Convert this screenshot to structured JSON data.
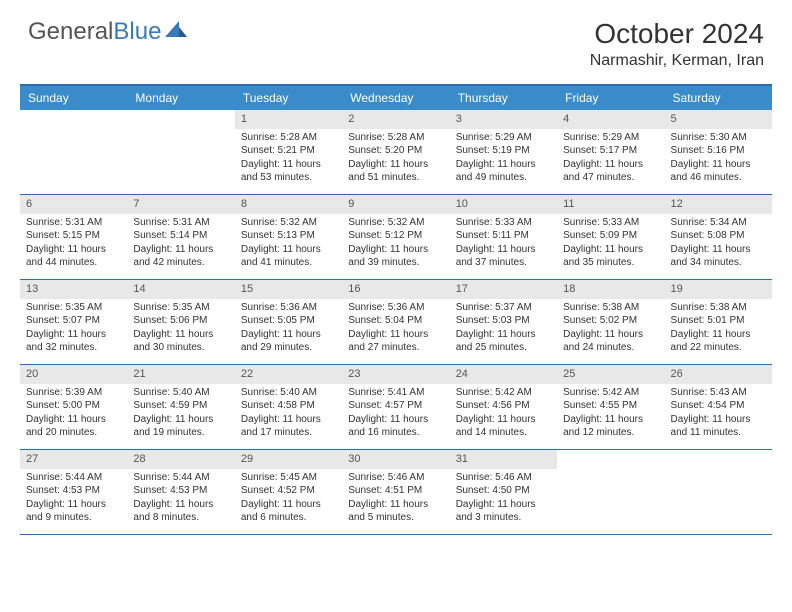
{
  "logo": {
    "text1": "General",
    "text2": "Blue"
  },
  "title": "October 2024",
  "location": "Narmashir, Kerman, Iran",
  "colors": {
    "header_bg": "#3a8bc9",
    "border": "#2a6db0",
    "daynum_bg": "#e8e8e8",
    "text": "#333333",
    "logo_gray": "#555555",
    "logo_blue": "#3a79b7"
  },
  "weekdays": [
    "Sunday",
    "Monday",
    "Tuesday",
    "Wednesday",
    "Thursday",
    "Friday",
    "Saturday"
  ],
  "weeks": [
    [
      {
        "empty": true
      },
      {
        "empty": true
      },
      {
        "num": "1",
        "sunrise": "Sunrise: 5:28 AM",
        "sunset": "Sunset: 5:21 PM",
        "daylight": "Daylight: 11 hours and 53 minutes."
      },
      {
        "num": "2",
        "sunrise": "Sunrise: 5:28 AM",
        "sunset": "Sunset: 5:20 PM",
        "daylight": "Daylight: 11 hours and 51 minutes."
      },
      {
        "num": "3",
        "sunrise": "Sunrise: 5:29 AM",
        "sunset": "Sunset: 5:19 PM",
        "daylight": "Daylight: 11 hours and 49 minutes."
      },
      {
        "num": "4",
        "sunrise": "Sunrise: 5:29 AM",
        "sunset": "Sunset: 5:17 PM",
        "daylight": "Daylight: 11 hours and 47 minutes."
      },
      {
        "num": "5",
        "sunrise": "Sunrise: 5:30 AM",
        "sunset": "Sunset: 5:16 PM",
        "daylight": "Daylight: 11 hours and 46 minutes."
      }
    ],
    [
      {
        "num": "6",
        "sunrise": "Sunrise: 5:31 AM",
        "sunset": "Sunset: 5:15 PM",
        "daylight": "Daylight: 11 hours and 44 minutes."
      },
      {
        "num": "7",
        "sunrise": "Sunrise: 5:31 AM",
        "sunset": "Sunset: 5:14 PM",
        "daylight": "Daylight: 11 hours and 42 minutes."
      },
      {
        "num": "8",
        "sunrise": "Sunrise: 5:32 AM",
        "sunset": "Sunset: 5:13 PM",
        "daylight": "Daylight: 11 hours and 41 minutes."
      },
      {
        "num": "9",
        "sunrise": "Sunrise: 5:32 AM",
        "sunset": "Sunset: 5:12 PM",
        "daylight": "Daylight: 11 hours and 39 minutes."
      },
      {
        "num": "10",
        "sunrise": "Sunrise: 5:33 AM",
        "sunset": "Sunset: 5:11 PM",
        "daylight": "Daylight: 11 hours and 37 minutes."
      },
      {
        "num": "11",
        "sunrise": "Sunrise: 5:33 AM",
        "sunset": "Sunset: 5:09 PM",
        "daylight": "Daylight: 11 hours and 35 minutes."
      },
      {
        "num": "12",
        "sunrise": "Sunrise: 5:34 AM",
        "sunset": "Sunset: 5:08 PM",
        "daylight": "Daylight: 11 hours and 34 minutes."
      }
    ],
    [
      {
        "num": "13",
        "sunrise": "Sunrise: 5:35 AM",
        "sunset": "Sunset: 5:07 PM",
        "daylight": "Daylight: 11 hours and 32 minutes."
      },
      {
        "num": "14",
        "sunrise": "Sunrise: 5:35 AM",
        "sunset": "Sunset: 5:06 PM",
        "daylight": "Daylight: 11 hours and 30 minutes."
      },
      {
        "num": "15",
        "sunrise": "Sunrise: 5:36 AM",
        "sunset": "Sunset: 5:05 PM",
        "daylight": "Daylight: 11 hours and 29 minutes."
      },
      {
        "num": "16",
        "sunrise": "Sunrise: 5:36 AM",
        "sunset": "Sunset: 5:04 PM",
        "daylight": "Daylight: 11 hours and 27 minutes."
      },
      {
        "num": "17",
        "sunrise": "Sunrise: 5:37 AM",
        "sunset": "Sunset: 5:03 PM",
        "daylight": "Daylight: 11 hours and 25 minutes."
      },
      {
        "num": "18",
        "sunrise": "Sunrise: 5:38 AM",
        "sunset": "Sunset: 5:02 PM",
        "daylight": "Daylight: 11 hours and 24 minutes."
      },
      {
        "num": "19",
        "sunrise": "Sunrise: 5:38 AM",
        "sunset": "Sunset: 5:01 PM",
        "daylight": "Daylight: 11 hours and 22 minutes."
      }
    ],
    [
      {
        "num": "20",
        "sunrise": "Sunrise: 5:39 AM",
        "sunset": "Sunset: 5:00 PM",
        "daylight": "Daylight: 11 hours and 20 minutes."
      },
      {
        "num": "21",
        "sunrise": "Sunrise: 5:40 AM",
        "sunset": "Sunset: 4:59 PM",
        "daylight": "Daylight: 11 hours and 19 minutes."
      },
      {
        "num": "22",
        "sunrise": "Sunrise: 5:40 AM",
        "sunset": "Sunset: 4:58 PM",
        "daylight": "Daylight: 11 hours and 17 minutes."
      },
      {
        "num": "23",
        "sunrise": "Sunrise: 5:41 AM",
        "sunset": "Sunset: 4:57 PM",
        "daylight": "Daylight: 11 hours and 16 minutes."
      },
      {
        "num": "24",
        "sunrise": "Sunrise: 5:42 AM",
        "sunset": "Sunset: 4:56 PM",
        "daylight": "Daylight: 11 hours and 14 minutes."
      },
      {
        "num": "25",
        "sunrise": "Sunrise: 5:42 AM",
        "sunset": "Sunset: 4:55 PM",
        "daylight": "Daylight: 11 hours and 12 minutes."
      },
      {
        "num": "26",
        "sunrise": "Sunrise: 5:43 AM",
        "sunset": "Sunset: 4:54 PM",
        "daylight": "Daylight: 11 hours and 11 minutes."
      }
    ],
    [
      {
        "num": "27",
        "sunrise": "Sunrise: 5:44 AM",
        "sunset": "Sunset: 4:53 PM",
        "daylight": "Daylight: 11 hours and 9 minutes."
      },
      {
        "num": "28",
        "sunrise": "Sunrise: 5:44 AM",
        "sunset": "Sunset: 4:53 PM",
        "daylight": "Daylight: 11 hours and 8 minutes."
      },
      {
        "num": "29",
        "sunrise": "Sunrise: 5:45 AM",
        "sunset": "Sunset: 4:52 PM",
        "daylight": "Daylight: 11 hours and 6 minutes."
      },
      {
        "num": "30",
        "sunrise": "Sunrise: 5:46 AM",
        "sunset": "Sunset: 4:51 PM",
        "daylight": "Daylight: 11 hours and 5 minutes."
      },
      {
        "num": "31",
        "sunrise": "Sunrise: 5:46 AM",
        "sunset": "Sunset: 4:50 PM",
        "daylight": "Daylight: 11 hours and 3 minutes."
      },
      {
        "empty": true
      },
      {
        "empty": true
      }
    ]
  ]
}
